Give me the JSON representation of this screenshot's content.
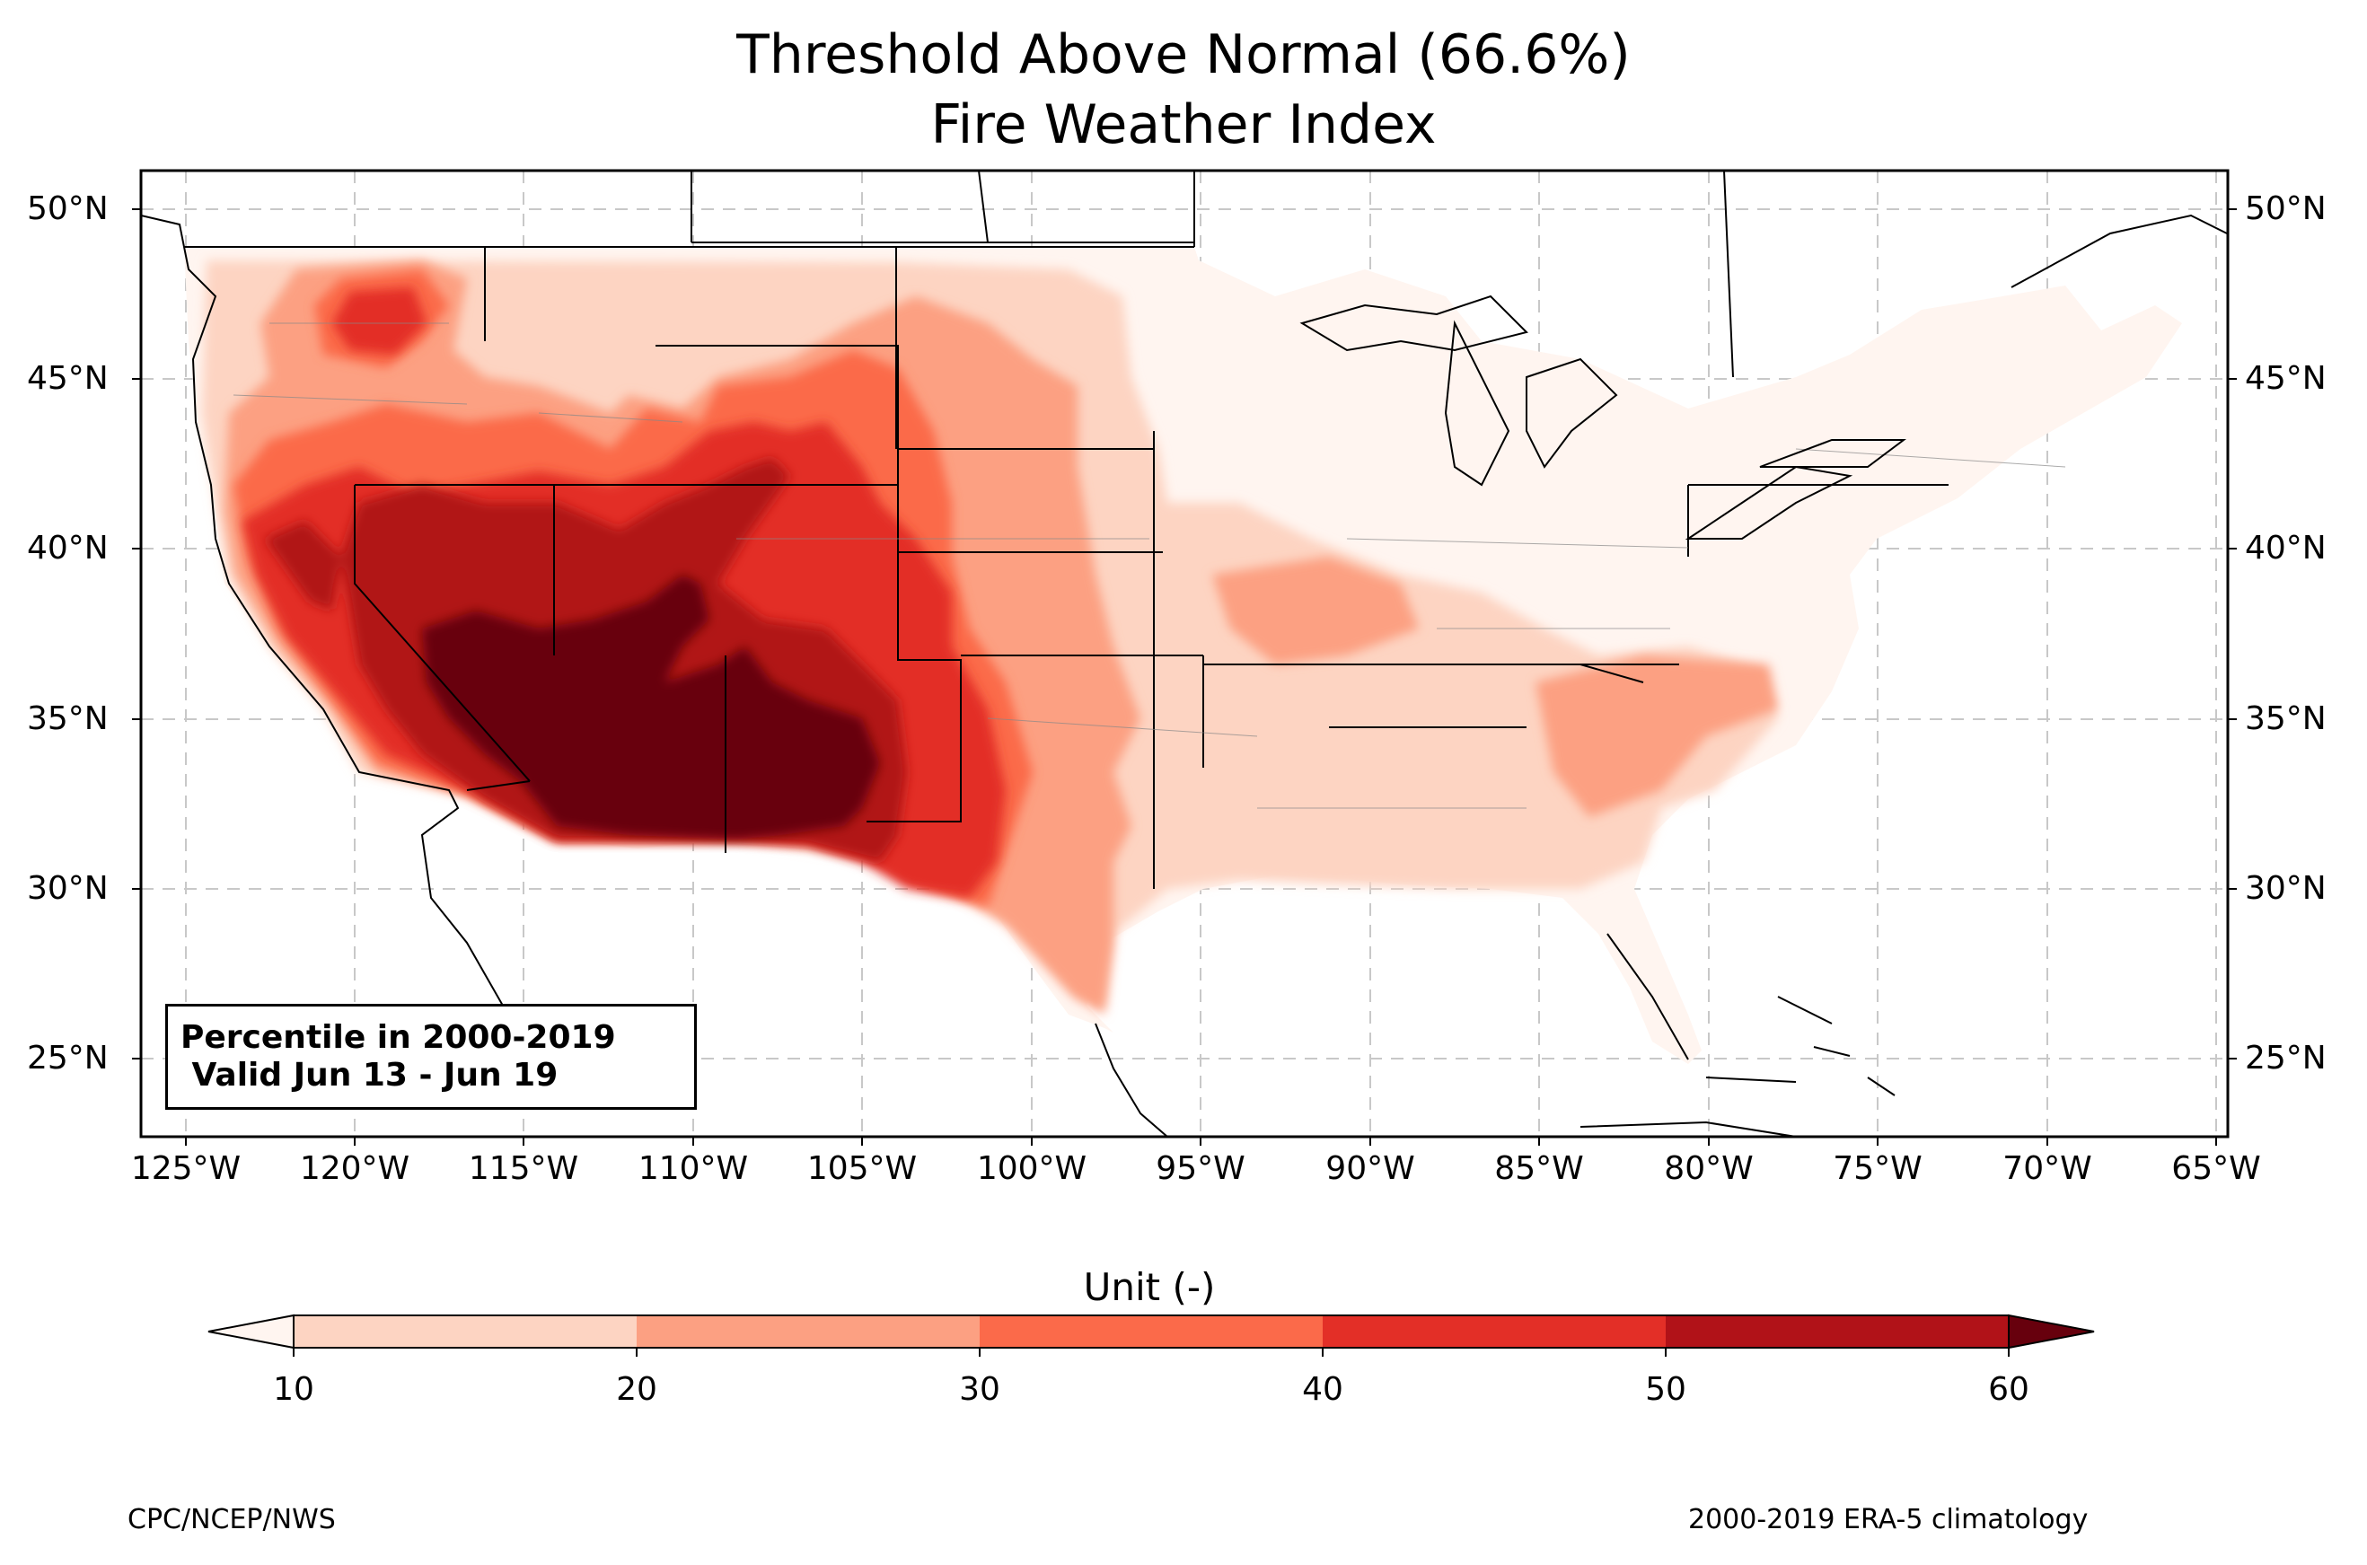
{
  "title_line1": "Threshold Above Normal (66.6%)",
  "title_line2": "Fire Weather Index",
  "lon_ticks": [
    "125°W",
    "120°W",
    "115°W",
    "110°W",
    "105°W",
    "100°W",
    "95°W",
    "90°W",
    "85°W",
    "80°W",
    "75°W",
    "70°W",
    "65°W"
  ],
  "lat_ticks": [
    "50°N",
    "45°N",
    "40°N",
    "35°N",
    "30°N",
    "25°N"
  ],
  "info_box": {
    "line1": "Percentile in 2000-2019",
    "line2": " Valid Jun 13 - Jun 19"
  },
  "colorbar": {
    "label": "Unit (-)",
    "ticks": [
      "10",
      "20",
      "30",
      "40",
      "50",
      "60"
    ],
    "colors": [
      "#fdd4c2",
      "#fca082",
      "#fb6a4a",
      "#e32f27",
      "#b11218",
      "#67000d"
    ],
    "extend_low_color": "#fff5f0"
  },
  "footer_left": "CPC/NCEP/NWS",
  "footer_right": "2000-2019 ERA-5 climatology",
  "map_colors": {
    "background": "#ffffff",
    "land_base": "#fff5f0",
    "water": "#ffffff"
  }
}
